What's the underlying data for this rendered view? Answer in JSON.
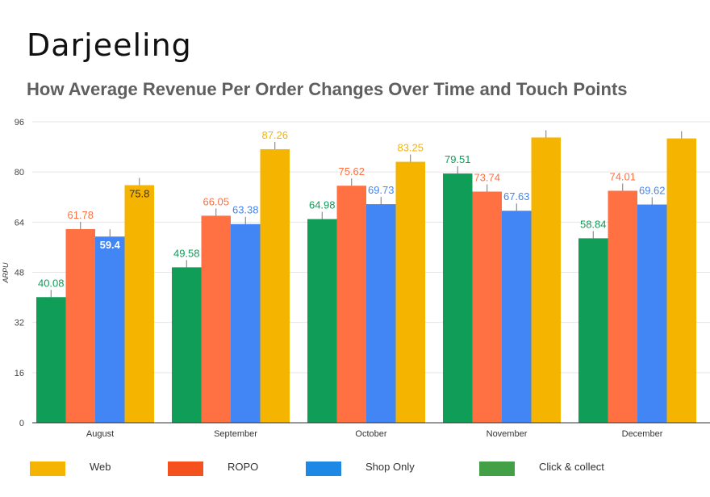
{
  "header": {
    "brand": "Darjeeling",
    "title": "How Average Revenue Per Order Changes Over Time and Touch Points"
  },
  "chart_data": {
    "type": "bar",
    "title": "How Average Revenue Per Order Changes Over Time and Touch Points",
    "xlabel": "",
    "ylabel": "ARPU",
    "ylim": [
      0,
      96
    ],
    "yticks": [
      0,
      16,
      32,
      48,
      64,
      80,
      96
    ],
    "grid": true,
    "legend_position": "bottom",
    "categories": [
      "August",
      "September",
      "October",
      "November",
      "December"
    ],
    "series": [
      {
        "name": "Click & collect",
        "color": "#0f9d58",
        "values": [
          40.08,
          49.58,
          64.98,
          79.51,
          58.84
        ],
        "labels": [
          "40.08",
          "49.58",
          "64.98",
          "79.51",
          "58.84"
        ]
      },
      {
        "name": "ROPO",
        "color": "#ff7043",
        "values": [
          61.78,
          66.05,
          75.62,
          73.74,
          74.01
        ],
        "labels": [
          "61.78",
          "66.05",
          "75.62",
          "73.74",
          "74.01"
        ]
      },
      {
        "name": "Shop Only",
        "color": "#4285f4",
        "values": [
          59.4,
          63.38,
          69.73,
          67.63,
          69.62
        ],
        "labels": [
          "59.4",
          "63.38",
          "69.73",
          "67.63",
          "69.62"
        ]
      },
      {
        "name": "Web",
        "color": "#f4b400",
        "values": [
          75.8,
          87.26,
          83.25,
          91.0,
          90.7
        ],
        "labels": [
          "75.8",
          "87.26",
          "83.25",
          "",
          ""
        ]
      }
    ],
    "legend": [
      {
        "name": "Web",
        "color": "#f4b400"
      },
      {
        "name": "ROPO",
        "color": "#f4511e"
      },
      {
        "name": "Shop Only",
        "color": "#1e88e5"
      },
      {
        "name": "Click & collect",
        "color": "#43a047"
      }
    ]
  }
}
